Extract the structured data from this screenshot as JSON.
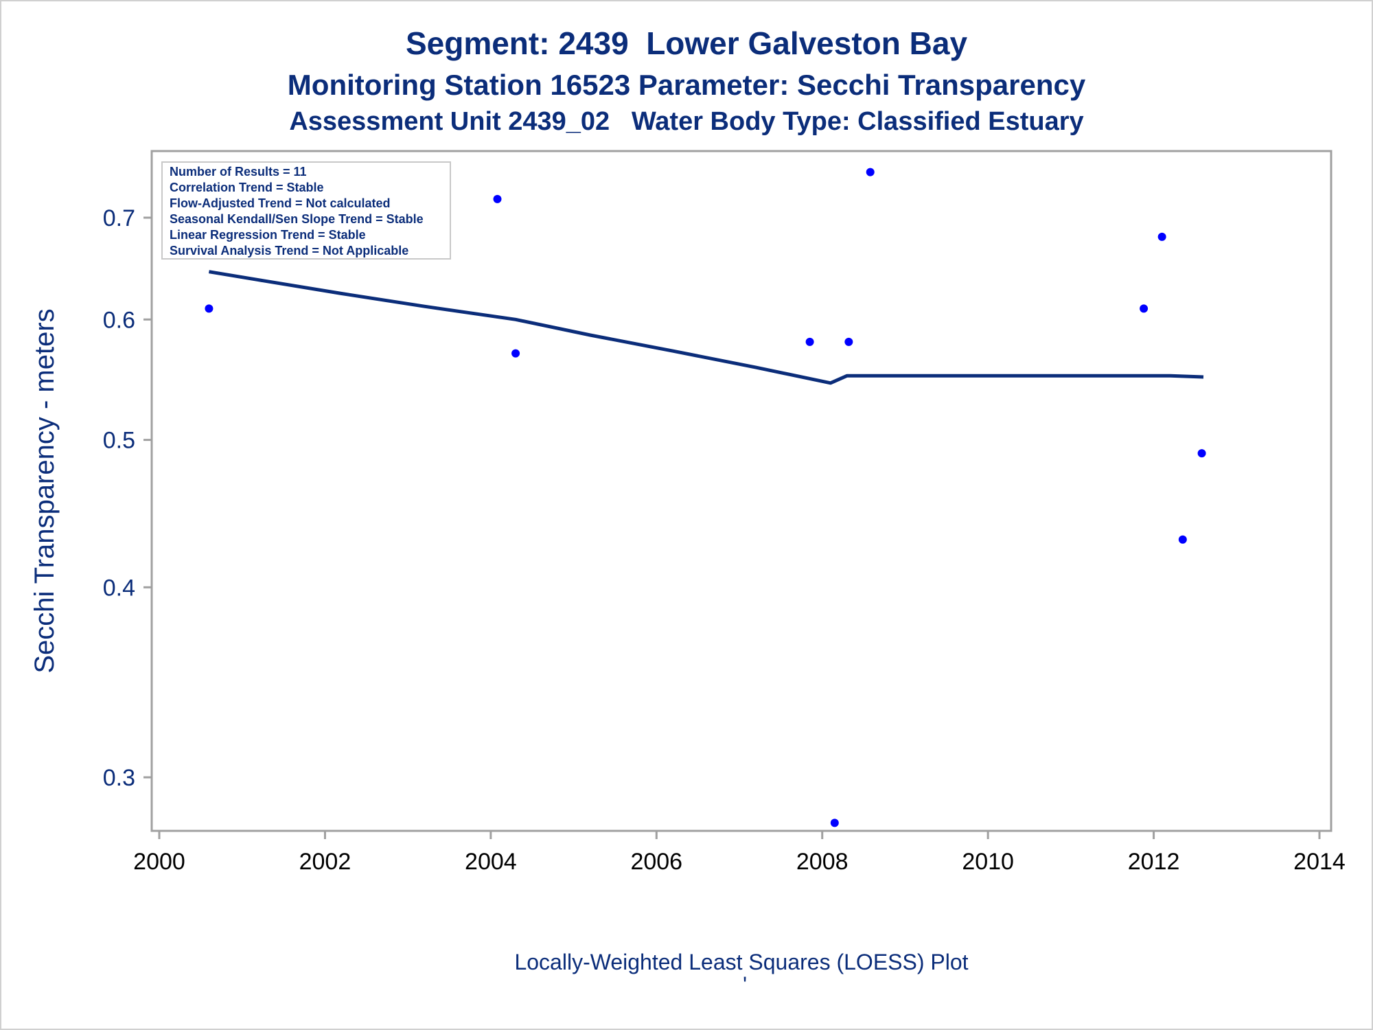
{
  "chart_data": {
    "type": "scatter",
    "title": "Segment: 2439  Lower Galveston Bay",
    "subtitle": "Monitoring Station 16523 Parameter: Secchi Transparency",
    "subtitle2": "Assessment Unit 2439_02   Water Body Type: Classified Estuary",
    "ylabel": "Secchi Transparency - meters",
    "xlabel": "Locally-Weighted Least Squares (LOESS) Plot",
    "footnote_mark": "'",
    "y_scale": "log",
    "xlim": [
      2000,
      2014
    ],
    "ylim": [
      0.28,
      0.75
    ],
    "x_ticks": [
      "2000",
      "2002",
      "2004",
      "2006",
      "2008",
      "2010",
      "2012",
      "2014"
    ],
    "y_ticks": [
      "0.3",
      "0.4",
      "0.5",
      "0.6",
      "0.7"
    ],
    "stats_box": [
      "Number of Results = 11",
      "Correlation Trend = Stable",
      "Flow-Adjusted Trend = Not calculated",
      "Seasonal Kendall/Sen Slope Trend = Stable",
      "Linear Regression Trend = Stable",
      "Survival Analysis Trend = Not Applicable"
    ],
    "series": [
      {
        "type": "scatter",
        "points": [
          {
            "x": 2000.6,
            "y": 0.61
          },
          {
            "x": 2004.08,
            "y": 0.72
          },
          {
            "x": 2004.3,
            "y": 0.57
          },
          {
            "x": 2007.85,
            "y": 0.58
          },
          {
            "x": 2008.15,
            "y": 0.28
          },
          {
            "x": 2008.32,
            "y": 0.58
          },
          {
            "x": 2008.58,
            "y": 0.75
          },
          {
            "x": 2011.88,
            "y": 0.61
          },
          {
            "x": 2012.1,
            "y": 0.68
          },
          {
            "x": 2012.35,
            "y": 0.43
          },
          {
            "x": 2012.58,
            "y": 0.49
          }
        ]
      },
      {
        "type": "line",
        "points": [
          {
            "x": 2000.6,
            "y": 0.645
          },
          {
            "x": 2001.2,
            "y": 0.637
          },
          {
            "x": 2002.2,
            "y": 0.624
          },
          {
            "x": 2003.2,
            "y": 0.612
          },
          {
            "x": 2004.3,
            "y": 0.6
          },
          {
            "x": 2005.2,
            "y": 0.586
          },
          {
            "x": 2006.2,
            "y": 0.572
          },
          {
            "x": 2007.2,
            "y": 0.558
          },
          {
            "x": 2008.1,
            "y": 0.545
          },
          {
            "x": 2008.3,
            "y": 0.551
          },
          {
            "x": 2009.7,
            "y": 0.551
          },
          {
            "x": 2012.2,
            "y": 0.551
          },
          {
            "x": 2012.6,
            "y": 0.55
          }
        ]
      }
    ]
  },
  "colors": {
    "title": "#0b2d7a",
    "line": "#0b2d7a",
    "points": "#0000ff",
    "axis": "#a0a0a0"
  }
}
